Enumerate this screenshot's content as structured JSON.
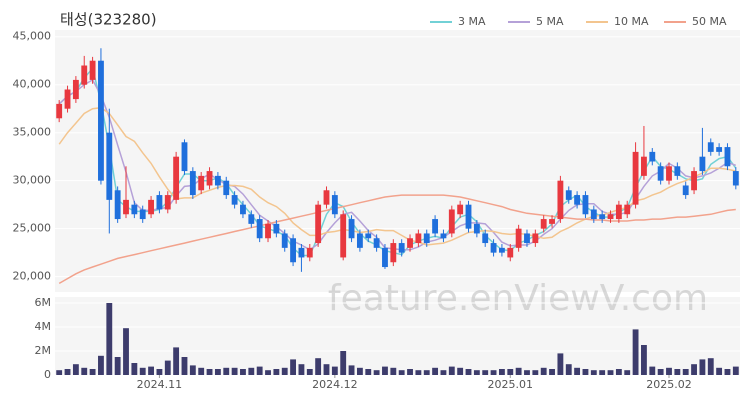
{
  "chart_data": [
    {
      "type": "candlestick",
      "title": "태성(323280)",
      "watermark": "feature.enViewV.com",
      "up_color": "#e8383f",
      "down_color": "#1f6fdc",
      "grid": true,
      "legend": "top-right",
      "ylim": [
        18400,
        45700
      ],
      "yticks": [
        {
          "value": 20000,
          "label": "20,000"
        },
        {
          "value": 25000,
          "label": "25,000"
        },
        {
          "value": 30000,
          "label": "30,000"
        },
        {
          "value": 35000,
          "label": "35,000"
        },
        {
          "value": 40000,
          "label": "40,000"
        },
        {
          "value": 45000,
          "label": "45,000"
        }
      ],
      "open": [
        36500,
        37500,
        38500,
        40000,
        40500,
        42500,
        35000,
        29000,
        26500,
        27500,
        27000,
        26500,
        28500,
        27000,
        28000,
        34000,
        31000,
        29000,
        29500,
        30500,
        30000,
        28500,
        27500,
        26500,
        26000,
        24000,
        25500,
        24500,
        24000,
        23000,
        22000,
        23500,
        27500,
        28500,
        22000,
        26000,
        24500,
        24500,
        24000,
        23000,
        21500,
        23500,
        23000,
        23500,
        24500,
        26000,
        24500,
        24500,
        26500,
        27500,
        25500,
        24500,
        23500,
        23000,
        22000,
        23000,
        24500,
        23500,
        25000,
        25500,
        26000,
        29000,
        28500,
        28500,
        27000,
        26500,
        26000,
        26000,
        26500,
        27500,
        30500,
        33000,
        31500,
        30000,
        31500,
        29500,
        29000,
        32500,
        34000,
        33500,
        33500,
        31000
      ],
      "high": [
        38400,
        39900,
        40900,
        43000,
        42900,
        43800,
        37500,
        29400,
        31500,
        27900,
        27400,
        28400,
        28900,
        28900,
        33000,
        34300,
        31400,
        30900,
        31400,
        30900,
        30400,
        28900,
        27900,
        26900,
        26400,
        25900,
        25900,
        24900,
        24400,
        23400,
        23400,
        27900,
        29400,
        28900,
        26900,
        26400,
        24900,
        24900,
        24400,
        23400,
        23900,
        23900,
        24400,
        24900,
        24900,
        26400,
        24900,
        27400,
        27900,
        27900,
        25900,
        24900,
        23900,
        23400,
        23400,
        25400,
        24900,
        24900,
        26400,
        26400,
        30500,
        29400,
        28900,
        28900,
        27400,
        26900,
        26900,
        27900,
        27900,
        34000,
        35700,
        33400,
        31900,
        31900,
        31900,
        29900,
        31400,
        35500,
        34400,
        33900,
        33900,
        31400
      ],
      "low": [
        36100,
        37100,
        38100,
        39600,
        40100,
        29600,
        24500,
        25600,
        26100,
        26100,
        25600,
        26100,
        26600,
        26600,
        27600,
        30600,
        28100,
        28600,
        29100,
        29100,
        28100,
        27100,
        26100,
        25100,
        23600,
        23600,
        24100,
        22600,
        21100,
        20500,
        21600,
        23100,
        27100,
        26100,
        21700,
        23600,
        22600,
        23600,
        22600,
        20800,
        21100,
        22100,
        22600,
        23100,
        23100,
        24100,
        23600,
        24100,
        26100,
        24600,
        24100,
        23100,
        22100,
        22100,
        21600,
        22600,
        23100,
        23100,
        24600,
        25100,
        25600,
        27600,
        27100,
        26100,
        25600,
        25600,
        25600,
        25600,
        26100,
        27100,
        30100,
        31600,
        29600,
        29600,
        30100,
        28100,
        28600,
        30600,
        32600,
        32600,
        31100,
        29100
      ],
      "close": [
        38000,
        39500,
        40500,
        42000,
        42500,
        30000,
        28000,
        26000,
        28000,
        26500,
        26000,
        28000,
        27000,
        28500,
        32500,
        31000,
        28500,
        30500,
        31000,
        29500,
        28500,
        27500,
        26500,
        25500,
        24000,
        25500,
        24500,
        23000,
        21500,
        22000,
        23000,
        27500,
        29000,
        26500,
        26500,
        24000,
        23000,
        24000,
        23000,
        21000,
        23500,
        22500,
        24000,
        24500,
        23500,
        24500,
        24000,
        27000,
        27500,
        25000,
        24500,
        23500,
        22500,
        22500,
        23000,
        25000,
        23500,
        24500,
        26000,
        26000,
        30000,
        28000,
        27500,
        26500,
        26000,
        26000,
        26500,
        27500,
        27500,
        33000,
        32500,
        32000,
        30000,
        31500,
        30500,
        28500,
        31000,
        31000,
        33000,
        33000,
        31500,
        29500
      ],
      "series": [
        {
          "name": "3 MA",
          "color": "#72d1d6",
          "values": [
            38000,
            38800,
            39300,
            40700,
            41700,
            38200,
            33500,
            28000,
            27300,
            26800,
            26800,
            26800,
            27000,
            27800,
            29300,
            30700,
            30700,
            30000,
            30000,
            30300,
            29700,
            28500,
            27500,
            26500,
            25300,
            25000,
            24700,
            24300,
            23000,
            22200,
            22200,
            24200,
            26500,
            27700,
            27300,
            25700,
            24500,
            23700,
            23300,
            22700,
            22500,
            22300,
            23300,
            23700,
            24000,
            24200,
            24000,
            25200,
            26200,
            26500,
            25700,
            24300,
            23500,
            22800,
            22700,
            23500,
            23800,
            24300,
            24700,
            25500,
            27300,
            28000,
            28500,
            27300,
            26700,
            26200,
            26200,
            26700,
            27200,
            29300,
            31000,
            32500,
            31500,
            31200,
            30700,
            30200,
            30000,
            30200,
            31700,
            32300,
            32500,
            31300
          ]
        },
        {
          "name": "5 MA",
          "color": "#b5a1d8",
          "values": [
            38000,
            38800,
            39300,
            40000,
            40500,
            38900,
            36600,
            33700,
            30900,
            27700,
            26900,
            26900,
            27100,
            27200,
            28400,
            29400,
            29500,
            30200,
            30700,
            30100,
            29600,
            29400,
            28600,
            27500,
            26400,
            25800,
            25200,
            24500,
            23700,
            23300,
            22800,
            23400,
            24600,
            25600,
            26500,
            26700,
            25800,
            24800,
            24100,
            23000,
            22900,
            22800,
            22800,
            23100,
            23600,
            23800,
            24100,
            24700,
            25300,
            25600,
            25600,
            25500,
            24600,
            23600,
            23200,
            23300,
            23300,
            23700,
            24400,
            25000,
            26000,
            26900,
            27500,
            27600,
            27600,
            26800,
            26500,
            26500,
            26700,
            28100,
            29400,
            30500,
            31000,
            31800,
            31300,
            30500,
            30300,
            30500,
            30800,
            31300,
            31900,
            31600
          ]
        },
        {
          "name": "10 MA",
          "color": "#f3c58f",
          "values": [
            33800,
            35000,
            36000,
            37000,
            37500,
            37600,
            37000,
            35800,
            34600,
            34100,
            32900,
            31800,
            30400,
            29100,
            28100,
            28200,
            28200,
            28700,
            29000,
            29300,
            29500,
            29500,
            29400,
            29100,
            28300,
            27700,
            27300,
            26600,
            25600,
            24900,
            24300,
            24300,
            24600,
            24700,
            24900,
            24800,
            24600,
            24700,
            24900,
            24800,
            24800,
            24300,
            23800,
            23600,
            23300,
            23400,
            23500,
            23800,
            24200,
            24600,
            24700,
            24800,
            24700,
            24500,
            24400,
            24500,
            24400,
            24200,
            24000,
            24100,
            24700,
            25100,
            25600,
            26000,
            26300,
            26400,
            26700,
            27000,
            27200,
            27900,
            28100,
            28500,
            28800,
            29300,
            29700,
            30000,
            30400,
            30800,
            31300,
            31300,
            31200,
            31000
          ]
        },
        {
          "name": "50 MA",
          "color": "#f2a28c",
          "values": [
            19300,
            19800,
            20300,
            20700,
            21000,
            21300,
            21600,
            21900,
            22100,
            22300,
            22500,
            22700,
            22900,
            23100,
            23300,
            23500,
            23700,
            23900,
            24100,
            24300,
            24500,
            24700,
            24900,
            25100,
            25300,
            25500,
            25700,
            25900,
            26100,
            26300,
            26500,
            26700,
            26900,
            27100,
            27300,
            27500,
            27700,
            27900,
            28100,
            28300,
            28400,
            28500,
            28500,
            28500,
            28500,
            28500,
            28500,
            28400,
            28300,
            28100,
            27900,
            27700,
            27500,
            27300,
            27000,
            26800,
            26600,
            26500,
            26400,
            26300,
            26200,
            26100,
            26000,
            26000,
            25900,
            25900,
            25800,
            25800,
            25800,
            25900,
            25900,
            26000,
            26000,
            26100,
            26200,
            26200,
            26300,
            26400,
            26500,
            26700,
            26900,
            27000
          ]
        }
      ]
    },
    {
      "type": "bar",
      "color": "#3d3c6c",
      "grid": true,
      "ylim": [
        0,
        6500000
      ],
      "yticks": [
        0,
        {
          "value": 2000000,
          "label": "2M"
        },
        {
          "value": 4000000,
          "label": "4M"
        },
        {
          "value": 6000000,
          "label": "6M"
        }
      ],
      "categories": [
        null,
        null,
        null,
        null,
        null,
        null,
        null,
        null,
        null,
        null,
        null,
        null,
        "2024.11",
        null,
        null,
        null,
        null,
        null,
        null,
        null,
        null,
        null,
        null,
        null,
        null,
        null,
        null,
        null,
        null,
        null,
        null,
        null,
        null,
        "2024.12",
        null,
        null,
        null,
        null,
        null,
        null,
        null,
        null,
        null,
        null,
        null,
        null,
        null,
        null,
        null,
        null,
        null,
        null,
        null,
        null,
        "2025.01",
        null,
        null,
        null,
        null,
        null,
        null,
        null,
        null,
        null,
        null,
        null,
        null,
        null,
        null,
        null,
        null,
        null,
        null,
        "2025.02",
        null,
        null,
        null,
        null,
        null,
        null,
        null,
        null
      ],
      "values": [
        400000,
        500000,
        900000,
        600000,
        500000,
        1600000,
        6000000,
        1500000,
        3900000,
        1000000,
        600000,
        700000,
        500000,
        1200000,
        2300000,
        1500000,
        800000,
        600000,
        500000,
        500000,
        600000,
        600000,
        500000,
        600000,
        700000,
        400000,
        500000,
        600000,
        1300000,
        900000,
        500000,
        1400000,
        900000,
        700000,
        2000000,
        800000,
        600000,
        500000,
        400000,
        700000,
        600000,
        400000,
        500000,
        400000,
        400000,
        600000,
        400000,
        700000,
        600000,
        500000,
        400000,
        400000,
        400000,
        500000,
        500000,
        600000,
        400000,
        400000,
        600000,
        500000,
        1800000,
        900000,
        600000,
        500000,
        400000,
        400000,
        400000,
        500000,
        400000,
        3800000,
        2500000,
        700000,
        500000,
        600000,
        500000,
        500000,
        900000,
        1300000,
        1400000,
        600000,
        500000,
        700000
      ]
    }
  ]
}
